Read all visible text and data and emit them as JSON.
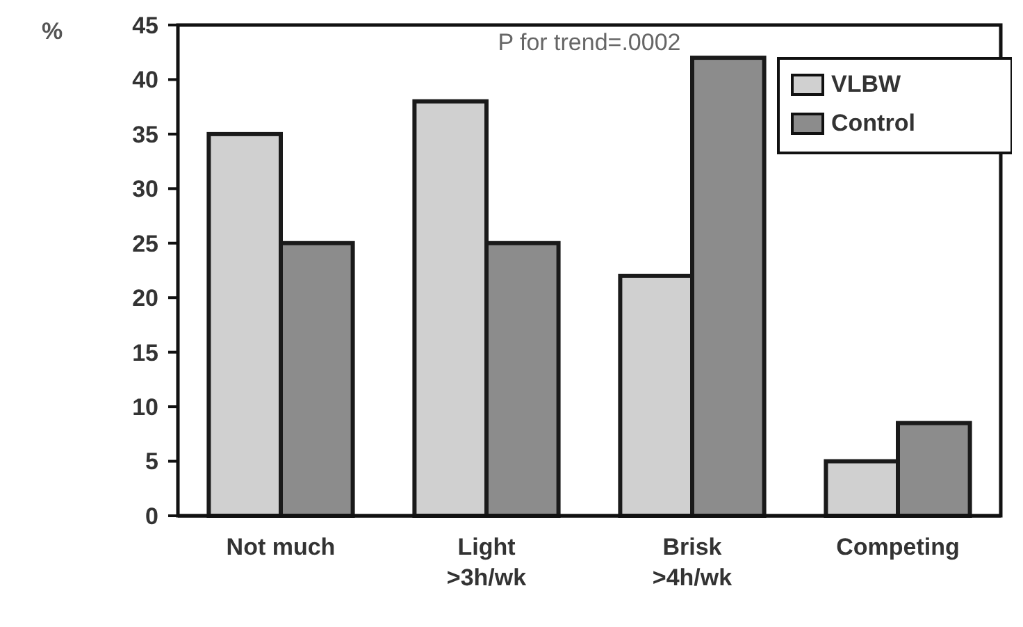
{
  "chart_data": {
    "type": "bar",
    "ylabel": "%",
    "annotations": [
      "P for trend=.0002"
    ],
    "categories": [
      "Not much",
      "Light\n>3h/wk",
      "Brisk\n>4h/wk",
      "Competing"
    ],
    "series": [
      {
        "name": "VLBW",
        "color": "#d0d0d0",
        "values": [
          35,
          38,
          22,
          5
        ]
      },
      {
        "name": "Control",
        "color": "#8c8c8c",
        "values": [
          25,
          25,
          42,
          8.5
        ]
      }
    ],
    "ylim": [
      0,
      45
    ],
    "yticks": [
      0,
      5,
      10,
      15,
      20,
      25,
      30,
      35,
      40,
      45
    ],
    "grid": false,
    "legend": "top right"
  }
}
